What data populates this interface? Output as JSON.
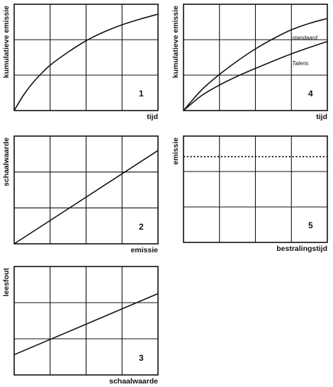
{
  "chart_data": [
    {
      "type": "line",
      "panel_number": "1",
      "xlabel": "tijd",
      "ylabel": "kumulatieve emissie",
      "xlim": [
        0,
        4
      ],
      "ylim": [
        0,
        3
      ],
      "grid": true,
      "series": [
        {
          "x": [
            0,
            0.25,
            0.5,
            0.75,
            1,
            1.5,
            2,
            2.5,
            3,
            3.5,
            4
          ],
          "values": [
            0,
            0.42,
            0.76,
            1.04,
            1.28,
            1.65,
            1.97,
            2.22,
            2.42,
            2.58,
            2.72
          ]
        }
      ]
    },
    {
      "type": "line",
      "panel_number": "4",
      "xlabel": "tijd",
      "ylabel": "kumulatieve emissie",
      "xlim": [
        0,
        4
      ],
      "ylim": [
        0,
        3
      ],
      "grid": true,
      "series": [
        {
          "name": "standaard",
          "x": [
            0,
            0.5,
            1,
            1.5,
            2,
            2.5,
            3,
            3.5,
            4
          ],
          "values": [
            0,
            0.58,
            1.02,
            1.4,
            1.74,
            2.03,
            2.28,
            2.46,
            2.6
          ]
        },
        {
          "name": "Talens",
          "x": [
            0,
            0.5,
            1,
            1.5,
            2,
            2.5,
            3,
            3.5,
            4
          ],
          "values": [
            0,
            0.42,
            0.72,
            0.97,
            1.19,
            1.4,
            1.6,
            1.78,
            1.95
          ]
        }
      ]
    },
    {
      "type": "line",
      "panel_number": "2",
      "xlabel": "emissie",
      "ylabel": "schaalwaarde",
      "xlim": [
        0,
        4
      ],
      "ylim": [
        0,
        3
      ],
      "grid": true,
      "series": [
        {
          "x": [
            0,
            4
          ],
          "values": [
            0,
            2.6
          ]
        }
      ]
    },
    {
      "type": "line",
      "panel_number": "5",
      "xlabel": "bestralingstijd",
      "ylabel": "emissie",
      "xlim": [
        0,
        4
      ],
      "ylim": [
        0,
        3
      ],
      "grid": true,
      "series": [
        {
          "x": [
            0,
            4
          ],
          "values": [
            2.42,
            2.42
          ],
          "style": "dotted"
        }
      ]
    },
    {
      "type": "line",
      "panel_number": "3",
      "xlabel": "schaalwaarde",
      "ylabel": "leesfout",
      "xlim": [
        0,
        4
      ],
      "ylim": [
        0,
        3
      ],
      "grid": true,
      "series": [
        {
          "x": [
            0,
            4
          ],
          "values": [
            0.56,
            2.25
          ]
        }
      ]
    }
  ]
}
